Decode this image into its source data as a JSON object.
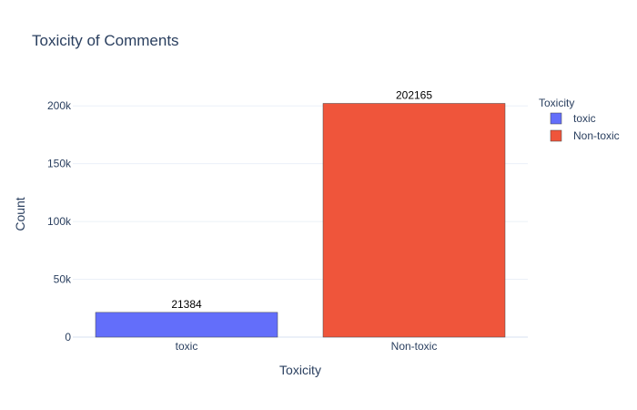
{
  "chart_data": {
    "type": "bar",
    "title": "Toxicity of Comments",
    "xlabel": "Toxicity",
    "ylabel": "Count",
    "categories": [
      "toxic",
      "Non-toxic"
    ],
    "values": [
      21384,
      202165
    ],
    "colors": [
      "#636efa",
      "#ef553b"
    ],
    "ylim": [
      0,
      212805
    ],
    "yticks": [
      0,
      50000,
      100000,
      150000,
      200000
    ],
    "ytick_labels": [
      "0",
      "50k",
      "100k",
      "150k",
      "200k"
    ],
    "grid": true,
    "legend": {
      "title": "Toxicity",
      "placement": "right",
      "entries": [
        "toxic",
        "Non-toxic"
      ]
    },
    "data_labels": [
      "21384",
      "202165"
    ]
  }
}
